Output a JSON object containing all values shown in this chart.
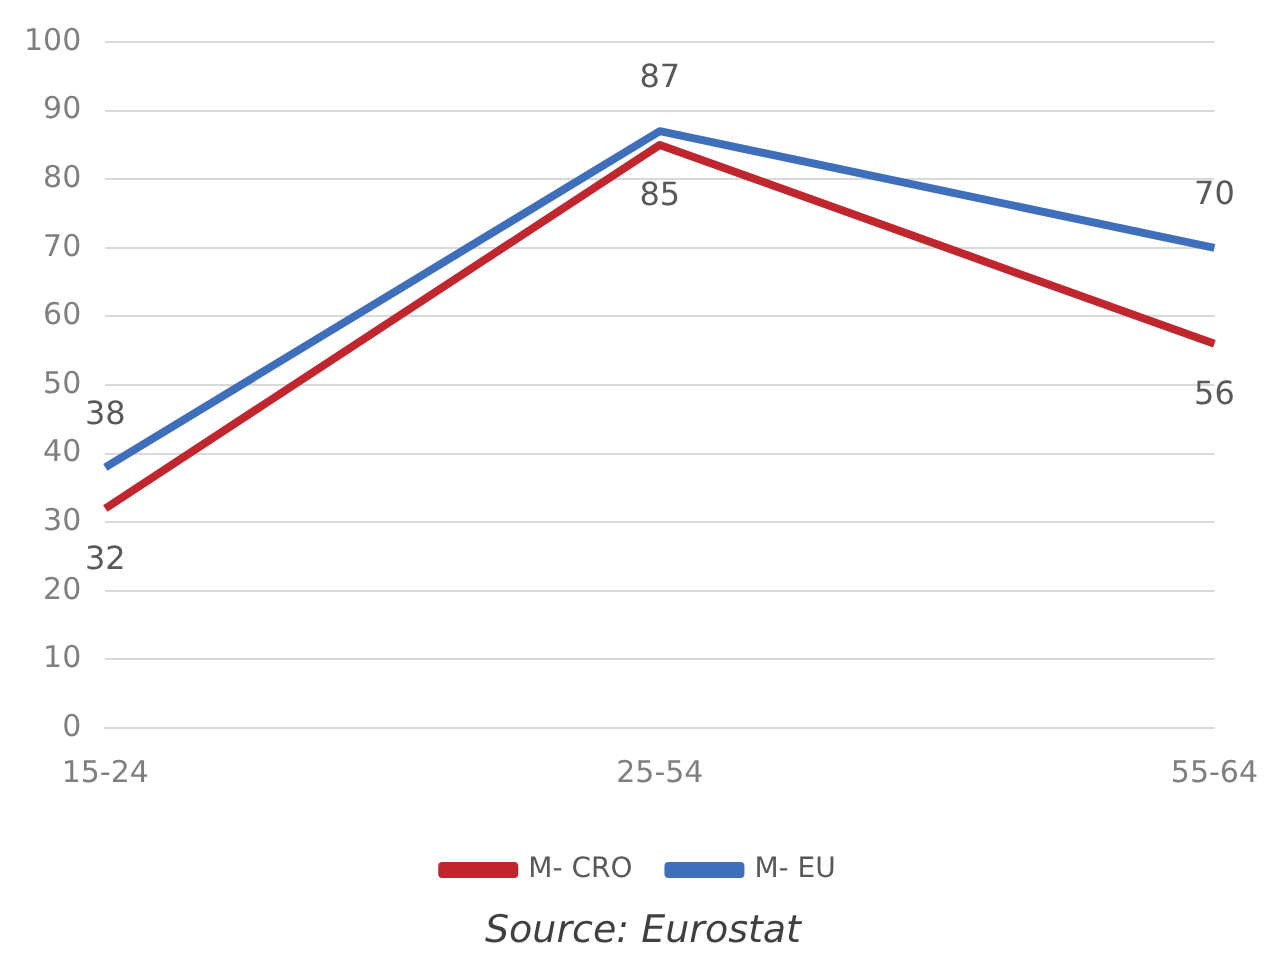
{
  "chart_data": {
    "type": "line",
    "categories": [
      "15-24",
      "25-54",
      "55-64"
    ],
    "series": [
      {
        "name": "M- CRO",
        "color": "#c0262d",
        "values": [
          32,
          85,
          56
        ]
      },
      {
        "name": "M- EU",
        "color": "#3f6fba",
        "values": [
          38,
          87,
          70
        ]
      }
    ],
    "ylim": [
      0,
      100
    ],
    "yticks": [
      0,
      10,
      20,
      30,
      40,
      50,
      60,
      70,
      80,
      90,
      100
    ],
    "grid": "y",
    "legend": "bottom",
    "data_labels": true,
    "marker": "none",
    "line_style": "solid",
    "annotations": [
      "Source: Eurostat"
    ]
  }
}
